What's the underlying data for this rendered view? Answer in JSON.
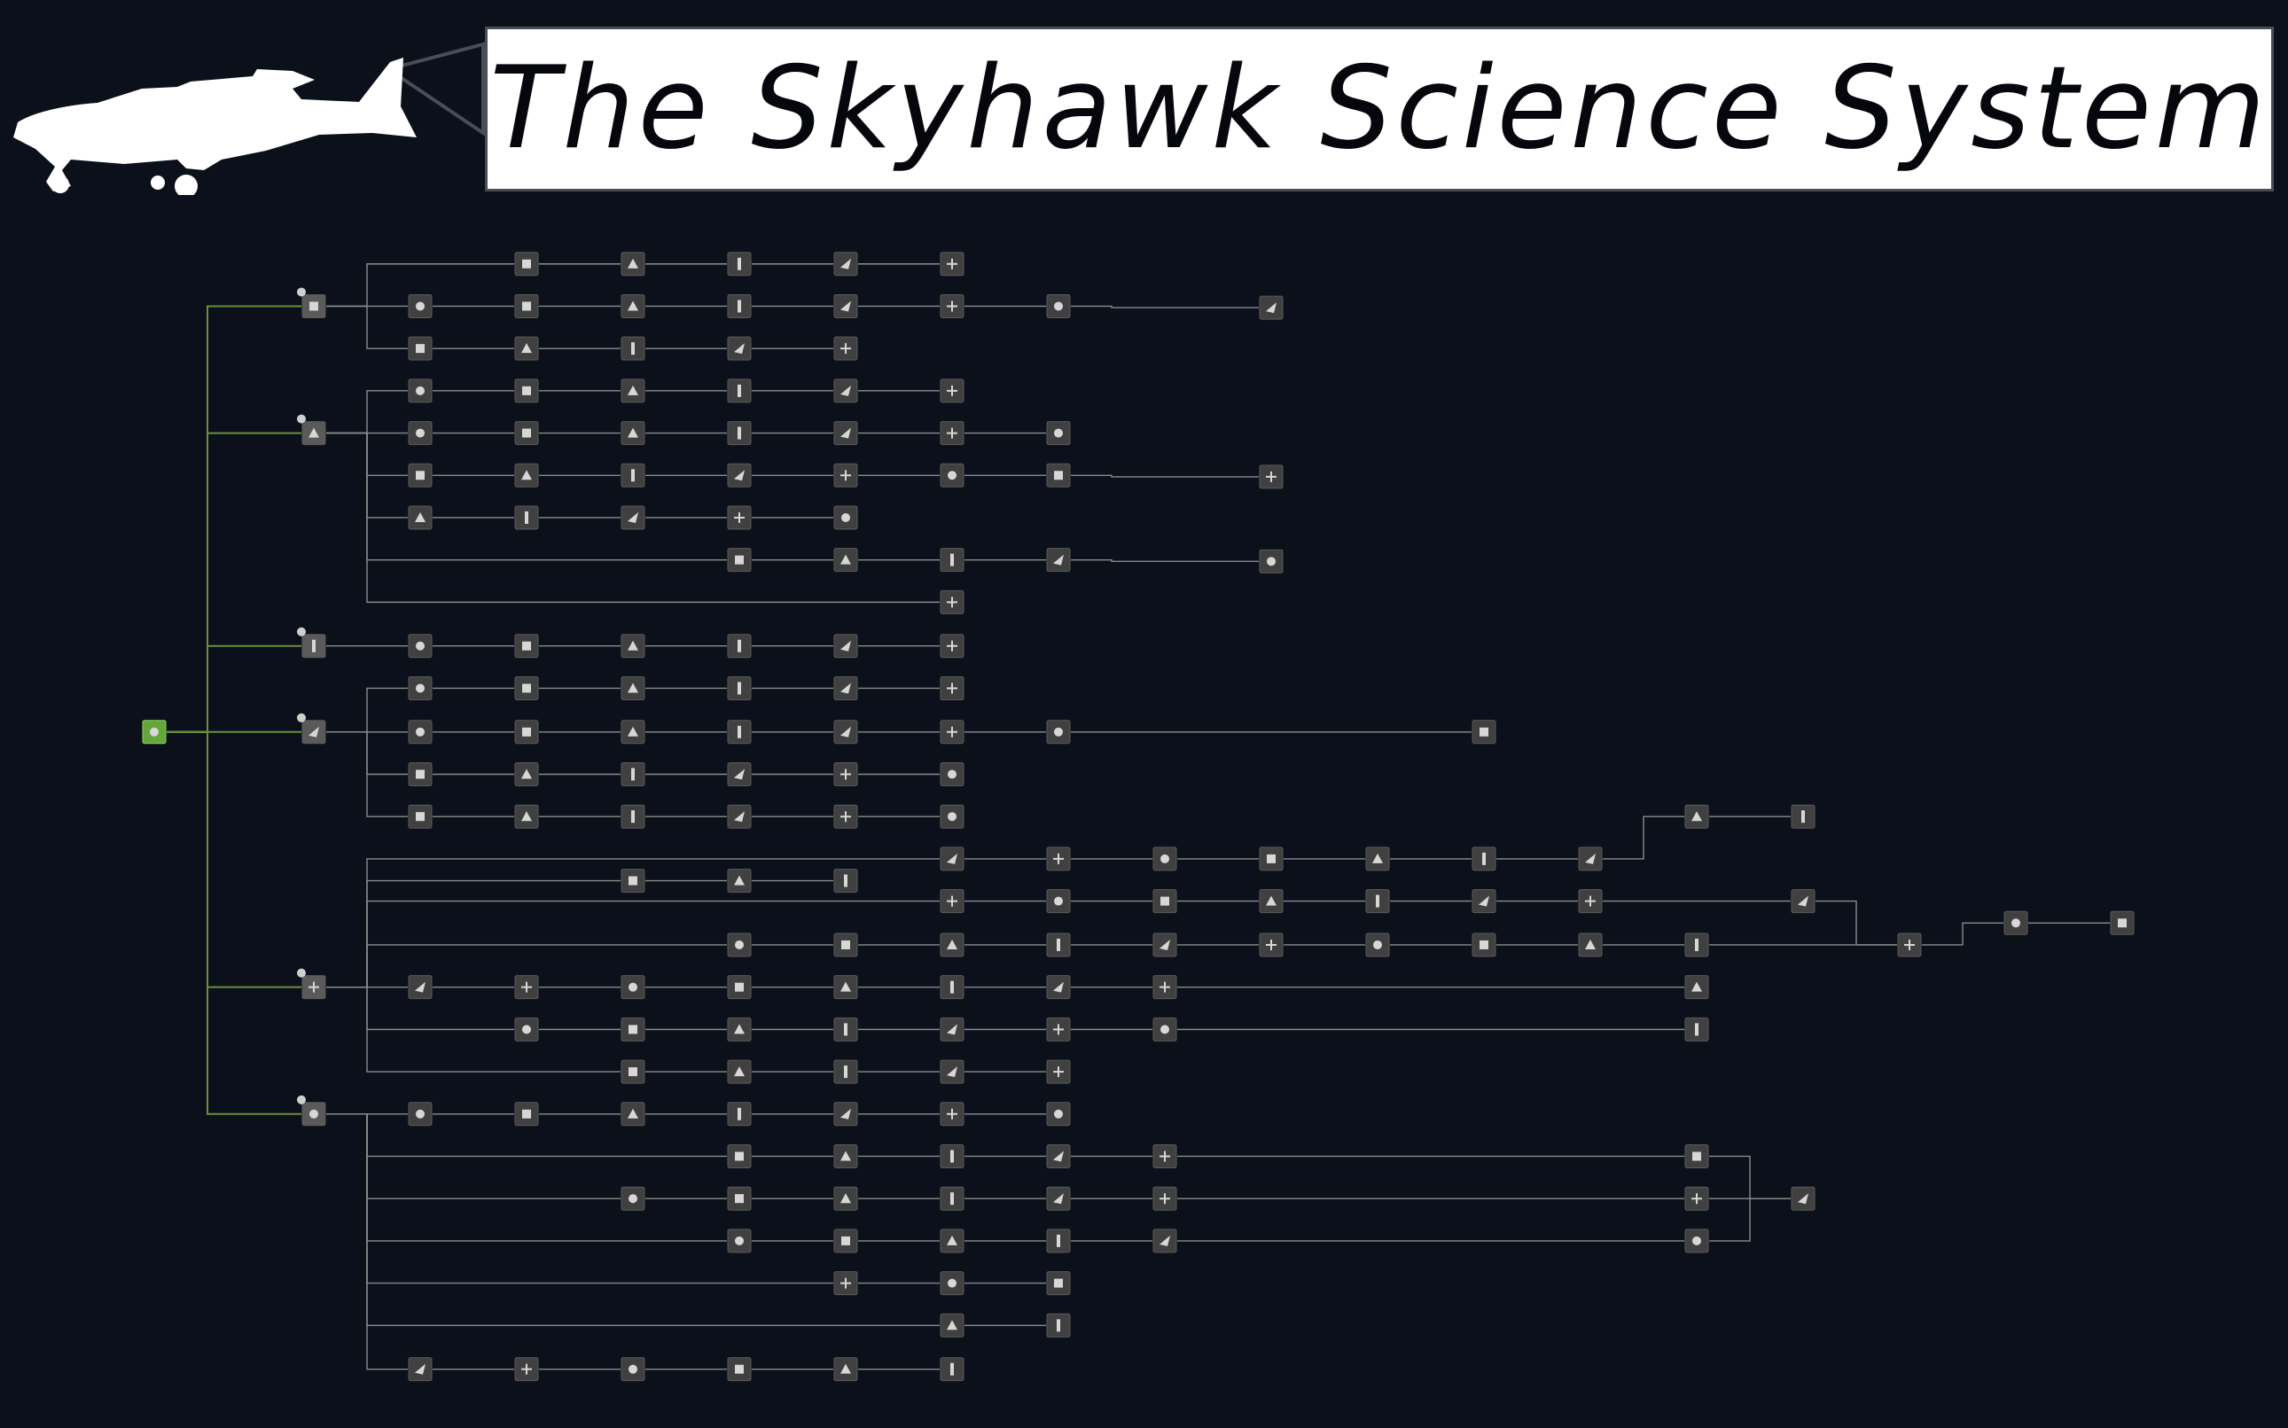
{
  "header": {
    "title": "The Skyhawk Science System",
    "logo_icon": "cessna-skyhawk-silhouette-icon"
  },
  "colors": {
    "background": "#0b101b",
    "node": "#404040",
    "node_border": "#5a5a5a",
    "root_node": "#64a63c",
    "link_line": "#8b8b8b",
    "root_link_line": "#6b8f3a",
    "title_bg": "#ffffff",
    "title_text": "#05070c"
  },
  "tree": {
    "root": {
      "id": "root",
      "icon": "science-root-icon"
    },
    "branches": [
      {
        "id": "aerodynamics",
        "icon": "aircraft-wing-icon"
      },
      {
        "id": "rocketry",
        "icon": "rocket-engine-icon"
      },
      {
        "id": "structural",
        "icon": "fuel-tank-icon"
      },
      {
        "id": "propulsion",
        "icon": "rocket-fin-icon"
      },
      {
        "id": "electronics",
        "icon": "battery-icon"
      },
      {
        "id": "construction",
        "icon": "wrench-icon"
      }
    ]
  }
}
